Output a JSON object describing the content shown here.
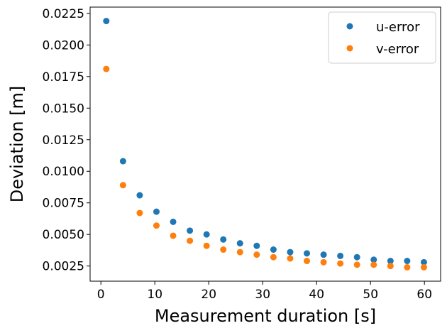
{
  "chart_data": {
    "type": "scatter",
    "title": "",
    "xlabel": "Measurement duration [s]",
    "ylabel": "Deviation [m]",
    "xlim": [
      -2,
      63
    ],
    "ylim": [
      0.0013,
      0.023
    ],
    "xticks": [
      0,
      10,
      20,
      30,
      40,
      50,
      60
    ],
    "xtick_labels": [
      "0",
      "10",
      "20",
      "30",
      "40",
      "50",
      "60"
    ],
    "yticks": [
      0.0025,
      0.005,
      0.0075,
      0.01,
      0.0125,
      0.015,
      0.0175,
      0.02,
      0.0225
    ],
    "ytick_labels": [
      "0.0025",
      "0.0050",
      "0.0075",
      "0.0100",
      "0.0125",
      "0.0150",
      "0.0175",
      "0.0200",
      "0.0225"
    ],
    "grid": false,
    "legend_position": "top-right",
    "x": [
      1,
      4.1,
      7.2,
      10.3,
      13.4,
      16.5,
      19.6,
      22.7,
      25.8,
      28.9,
      32.0,
      35.1,
      38.2,
      41.3,
      44.4,
      47.5,
      50.6,
      53.7,
      56.8,
      59.9
    ],
    "series": [
      {
        "name": "u-error",
        "color": "#1f77b4",
        "values": [
          0.0219,
          0.0108,
          0.0081,
          0.0068,
          0.006,
          0.0053,
          0.005,
          0.0046,
          0.0043,
          0.0041,
          0.0038,
          0.0036,
          0.0035,
          0.0034,
          0.0033,
          0.0032,
          0.003,
          0.0029,
          0.0029,
          0.0028
        ]
      },
      {
        "name": "v-error",
        "color": "#ff7f0e",
        "values": [
          0.0181,
          0.0089,
          0.0067,
          0.0057,
          0.0049,
          0.0045,
          0.0041,
          0.0038,
          0.0036,
          0.0034,
          0.0032,
          0.0031,
          0.0029,
          0.0028,
          0.0027,
          0.0026,
          0.0026,
          0.0025,
          0.0024,
          0.0024
        ]
      }
    ]
  }
}
